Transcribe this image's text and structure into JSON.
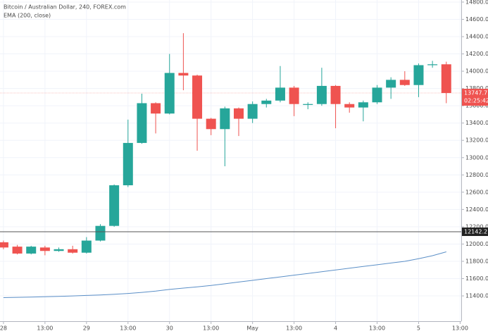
{
  "chart_data": {
    "type": "candlestick",
    "title": "Bitcoin / Australian Dollar, 240, FOREX.com",
    "indicator": "EMA (200, close)",
    "open": [
      12020,
      11970,
      11890,
      11960,
      11920,
      11940,
      11900,
      12040,
      12210,
      12680,
      13170,
      13630,
      13510,
      13980,
      13950,
      13450,
      13330,
      13570,
      13450,
      13620,
      13660,
      13810,
      13610,
      13620,
      13830,
      13620,
      13580,
      13640,
      13810,
      13900,
      13840,
      14070,
      14080
    ],
    "high": [
      12040,
      11990,
      11980,
      11980,
      11960,
      11980,
      12080,
      12230,
      12690,
      13440,
      13740,
      13640,
      14200,
      14440,
      13960,
      13460,
      13590,
      13580,
      13650,
      13680,
      14060,
      13830,
      13640,
      14040,
      13840,
      13640,
      13660,
      13840,
      13930,
      14000,
      14090,
      14120,
      14110
    ],
    "low": [
      11940,
      11880,
      11880,
      11870,
      11910,
      11890,
      11890,
      12030,
      12200,
      12660,
      13160,
      13280,
      13500,
      13780,
      13080,
      13260,
      12900,
      13250,
      13400,
      13580,
      13640,
      13480,
      13560,
      13600,
      13340,
      13520,
      13420,
      13620,
      13680,
      13830,
      13700,
      14040,
      13630
    ],
    "close": [
      11960,
      11890,
      11970,
      11920,
      11940,
      11900,
      12040,
      12210,
      12680,
      13170,
      13630,
      13510,
      13980,
      13950,
      13450,
      13330,
      13570,
      13450,
      13620,
      13660,
      13810,
      13620,
      13620,
      13830,
      13620,
      13580,
      13640,
      13810,
      13900,
      13840,
      14070,
      14080,
      13747.7
    ],
    "up_color": "#26a69a",
    "down_color": "#ef5350",
    "ema": {
      "color": "#5b8fc7",
      "values": [
        11380,
        11383,
        11386,
        11390,
        11395,
        11400,
        11405,
        11411,
        11418,
        11428,
        11440,
        11455,
        11475,
        11490,
        11505,
        11520,
        11540,
        11560,
        11580,
        11600,
        11620,
        11640,
        11660,
        11680,
        11700,
        11720,
        11740,
        11760,
        11780,
        11800,
        11830,
        11865,
        11910
      ]
    },
    "countdown": "02:25:42",
    "crosshair": 12142.2,
    "xlim": [
      -0.25,
      33.08
    ],
    "ylim": [
      11107,
      14824
    ],
    "xticks": [
      {
        "value": 0,
        "label": "28"
      },
      {
        "value": 3,
        "label": "13:00"
      },
      {
        "value": 6,
        "label": "29"
      },
      {
        "value": 9,
        "label": "13:00"
      },
      {
        "value": 12,
        "label": "30"
      },
      {
        "value": 15,
        "label": "13:00"
      },
      {
        "value": 18,
        "label": "May"
      },
      {
        "value": 21,
        "label": "13:00"
      },
      {
        "value": 24,
        "label": "4"
      },
      {
        "value": 27,
        "label": "13:00"
      },
      {
        "value": 30,
        "label": "5"
      },
      {
        "value": 33,
        "label": "13:00"
      }
    ],
    "yticks": [
      {
        "value": 11400,
        "label": "11400.0"
      },
      {
        "value": 11600,
        "label": "11600.0"
      },
      {
        "value": 11800,
        "label": "11800.0"
      },
      {
        "value": 12000,
        "label": "12000.0"
      },
      {
        "value": 12200,
        "label": "12200.0"
      },
      {
        "value": 12400,
        "label": "12400.0"
      },
      {
        "value": 12600,
        "label": "12600.0"
      },
      {
        "value": 12800,
        "label": "12800.0"
      },
      {
        "value": 13000,
        "label": "13000.0"
      },
      {
        "value": 13200,
        "label": "13200.0"
      },
      {
        "value": 13400,
        "label": "13400.0"
      },
      {
        "value": 13600,
        "label": "13600.0"
      },
      {
        "value": 13800,
        "label": "13800.0"
      },
      {
        "value": 14000,
        "label": "14000.0"
      },
      {
        "value": 14200,
        "label": "14200.0"
      },
      {
        "value": 14400,
        "label": "14400.0"
      },
      {
        "value": 14600,
        "label": "14600.0"
      },
      {
        "value": 14800,
        "label": "14800.0"
      }
    ],
    "grid": true
  }
}
